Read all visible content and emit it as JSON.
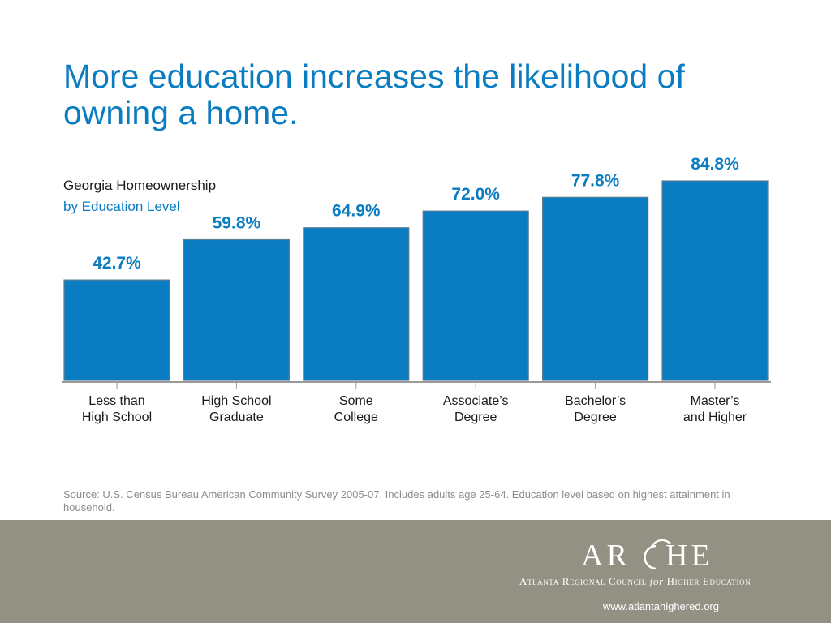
{
  "slide": {
    "headline": "More education increases the likelihood of owning a home.",
    "source_note": "Source: U.S. Census Bureau American Community Survey 2005-07. Includes adults age 25-64. Education level based on highest attainment in household."
  },
  "footer": {
    "logo_text": "ARCHE",
    "org_name_part1": "Atlanta Regional Council",
    "org_name_connector": "for",
    "org_name_part2": "Higher Education",
    "website": "www.atlantahighered.org",
    "background_color": "#939084"
  },
  "chart_data": {
    "type": "bar",
    "title": "Georgia Homeownership",
    "subtitle": "by Education Level",
    "categories": [
      [
        "Less than",
        "High School"
      ],
      [
        "High School",
        "Graduate"
      ],
      [
        "Some",
        "College"
      ],
      [
        "Associate’s",
        "Degree"
      ],
      [
        "Bachelor’s",
        "Degree"
      ],
      [
        "Master’s",
        "and Higher"
      ]
    ],
    "values": [
      42.7,
      59.8,
      64.9,
      72.0,
      77.8,
      84.8
    ],
    "value_labels": [
      "42.7%",
      "59.8%",
      "64.9%",
      "72.0%",
      "77.8%",
      "84.8%"
    ],
    "ylim": [
      0,
      100
    ],
    "bar_color": "#0A7CC1",
    "label_color": "#0A7CC1",
    "grid": false,
    "legend": "none"
  }
}
